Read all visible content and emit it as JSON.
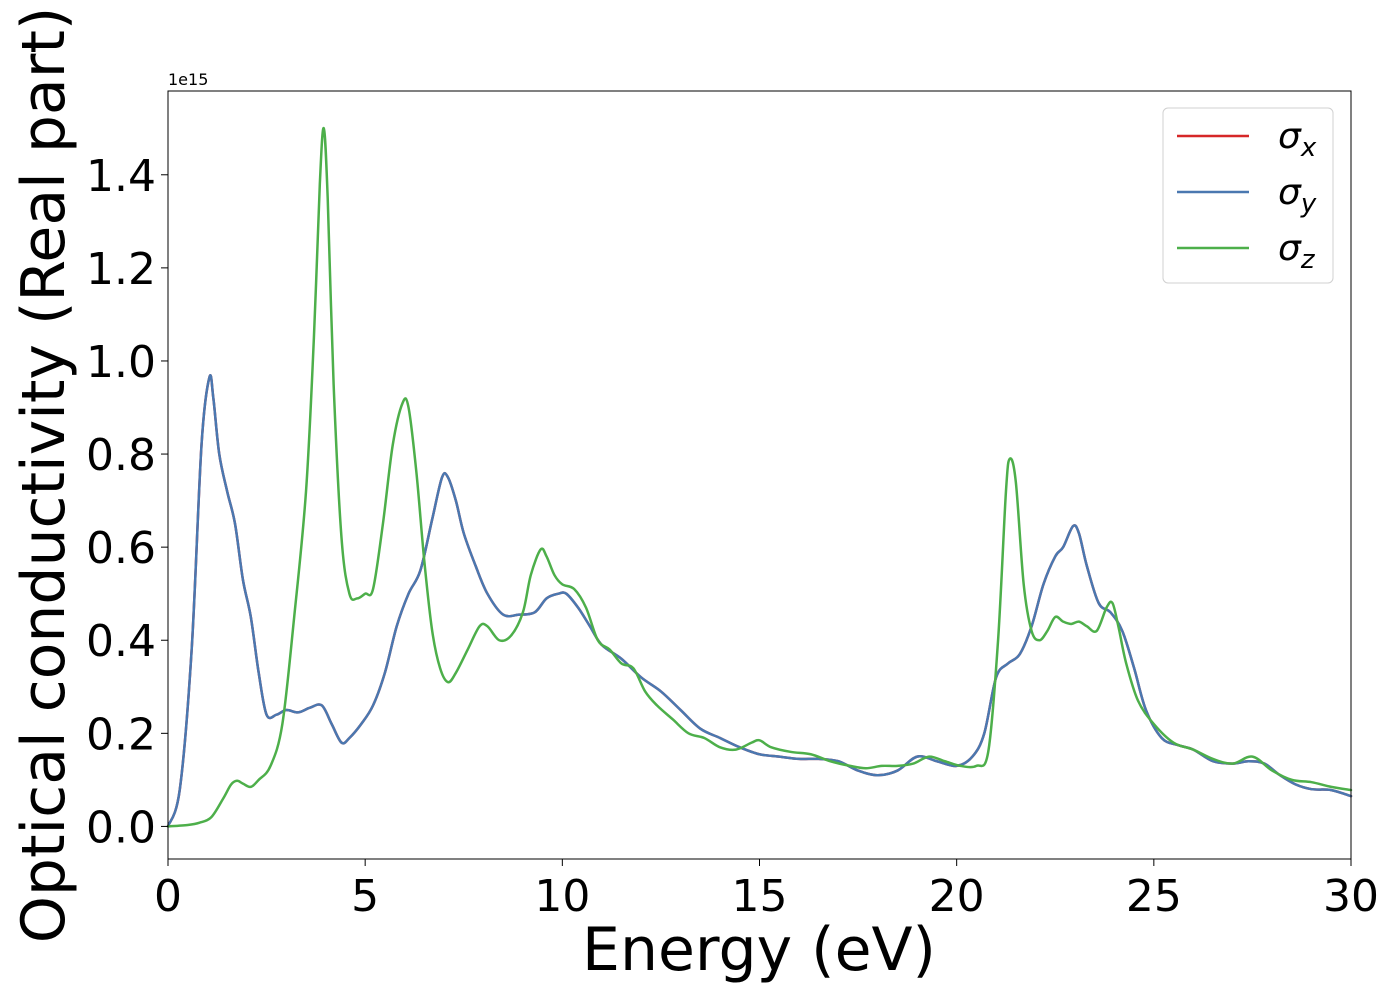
{
  "chart_data": {
    "type": "line",
    "title": "",
    "xlabel": "Energy (eV)",
    "ylabel": "Optical conductivity (Real part)",
    "offset_text": "1e15",
    "xlim": [
      0,
      30
    ],
    "ylim": [
      -0.07,
      1.58
    ],
    "x_ticks": [
      0,
      5,
      10,
      15,
      20,
      25,
      30
    ],
    "x_tick_labels": [
      "0",
      "5",
      "10",
      "15",
      "20",
      "25",
      "30"
    ],
    "y_ticks": [
      0.0,
      0.2,
      0.4,
      0.6,
      0.8,
      1.0,
      1.2,
      1.4
    ],
    "y_tick_labels": [
      "0.0",
      "0.2",
      "0.4",
      "0.6",
      "0.8",
      "1.0",
      "1.2",
      "1.4"
    ],
    "grid": false,
    "legend_position": "top-right",
    "series": [
      {
        "name": "σx",
        "symbol": "σ",
        "subscript": "x",
        "color": "#d62728",
        "x": [
          0,
          0.3,
          0.6,
          0.85,
          1.05,
          1.15,
          1.3,
          1.5,
          1.7,
          1.9,
          2.1,
          2.3,
          2.5,
          2.75,
          3.0,
          3.3,
          3.6,
          3.9,
          4.15,
          4.4,
          4.6,
          4.9,
          5.2,
          5.5,
          5.8,
          6.1,
          6.4,
          6.7,
          6.95,
          7.1,
          7.3,
          7.5,
          7.8,
          8.1,
          8.5,
          8.9,
          9.3,
          9.6,
          9.9,
          10.1,
          10.4,
          10.7,
          11.0,
          11.5,
          12.0,
          12.5,
          13.0,
          13.5,
          14.0,
          14.5,
          15.0,
          15.5,
          16.0,
          16.5,
          17.0,
          17.5,
          18.0,
          18.5,
          19.0,
          19.5,
          20.0,
          20.4,
          20.7,
          21.0,
          21.3,
          21.6,
          21.9,
          22.2,
          22.5,
          22.7,
          22.95,
          23.1,
          23.3,
          23.6,
          23.9,
          24.2,
          24.5,
          24.8,
          25.2,
          25.6,
          26.0,
          26.5,
          27.0,
          27.4,
          27.8,
          28.2,
          28.6,
          29.0,
          29.5,
          30.0
        ],
        "y": [
          0.0,
          0.08,
          0.38,
          0.82,
          0.965,
          0.92,
          0.8,
          0.72,
          0.65,
          0.53,
          0.45,
          0.33,
          0.24,
          0.24,
          0.25,
          0.245,
          0.255,
          0.26,
          0.22,
          0.18,
          0.19,
          0.22,
          0.26,
          0.33,
          0.43,
          0.5,
          0.55,
          0.66,
          0.75,
          0.75,
          0.7,
          0.63,
          0.56,
          0.5,
          0.455,
          0.455,
          0.46,
          0.49,
          0.5,
          0.5,
          0.47,
          0.43,
          0.39,
          0.36,
          0.32,
          0.29,
          0.25,
          0.21,
          0.19,
          0.17,
          0.155,
          0.15,
          0.145,
          0.145,
          0.14,
          0.12,
          0.11,
          0.12,
          0.15,
          0.14,
          0.13,
          0.15,
          0.2,
          0.32,
          0.35,
          0.37,
          0.43,
          0.52,
          0.58,
          0.6,
          0.645,
          0.63,
          0.56,
          0.48,
          0.46,
          0.42,
          0.34,
          0.25,
          0.19,
          0.175,
          0.165,
          0.14,
          0.135,
          0.14,
          0.135,
          0.11,
          0.09,
          0.08,
          0.078,
          0.065
        ]
      },
      {
        "name": "σy",
        "symbol": "σ",
        "subscript": "y",
        "color": "#4a78b0",
        "x": [
          0,
          0.3,
          0.6,
          0.85,
          1.05,
          1.15,
          1.3,
          1.5,
          1.7,
          1.9,
          2.1,
          2.3,
          2.5,
          2.75,
          3.0,
          3.3,
          3.6,
          3.9,
          4.15,
          4.4,
          4.6,
          4.9,
          5.2,
          5.5,
          5.8,
          6.1,
          6.4,
          6.7,
          6.95,
          7.1,
          7.3,
          7.5,
          7.8,
          8.1,
          8.5,
          8.9,
          9.3,
          9.6,
          9.9,
          10.1,
          10.4,
          10.7,
          11.0,
          11.5,
          12.0,
          12.5,
          13.0,
          13.5,
          14.0,
          14.5,
          15.0,
          15.5,
          16.0,
          16.5,
          17.0,
          17.5,
          18.0,
          18.5,
          19.0,
          19.5,
          20.0,
          20.4,
          20.7,
          21.0,
          21.3,
          21.6,
          21.9,
          22.2,
          22.5,
          22.7,
          22.95,
          23.1,
          23.3,
          23.6,
          23.9,
          24.2,
          24.5,
          24.8,
          25.2,
          25.6,
          26.0,
          26.5,
          27.0,
          27.4,
          27.8,
          28.2,
          28.6,
          29.0,
          29.5,
          30.0
        ],
        "y": [
          0.0,
          0.08,
          0.38,
          0.82,
          0.965,
          0.92,
          0.8,
          0.72,
          0.65,
          0.53,
          0.45,
          0.33,
          0.24,
          0.24,
          0.25,
          0.245,
          0.255,
          0.26,
          0.22,
          0.18,
          0.19,
          0.22,
          0.26,
          0.33,
          0.43,
          0.5,
          0.55,
          0.66,
          0.75,
          0.75,
          0.7,
          0.63,
          0.56,
          0.5,
          0.455,
          0.455,
          0.46,
          0.49,
          0.5,
          0.5,
          0.47,
          0.43,
          0.39,
          0.36,
          0.32,
          0.29,
          0.25,
          0.21,
          0.19,
          0.17,
          0.155,
          0.15,
          0.145,
          0.145,
          0.14,
          0.12,
          0.11,
          0.12,
          0.15,
          0.14,
          0.13,
          0.15,
          0.2,
          0.32,
          0.35,
          0.37,
          0.43,
          0.52,
          0.58,
          0.6,
          0.645,
          0.63,
          0.56,
          0.48,
          0.46,
          0.42,
          0.34,
          0.25,
          0.19,
          0.175,
          0.165,
          0.14,
          0.135,
          0.14,
          0.135,
          0.11,
          0.09,
          0.08,
          0.078,
          0.065
        ]
      },
      {
        "name": "σz",
        "symbol": "σ",
        "subscript": "z",
        "color": "#4daf4a",
        "x": [
          0,
          0.5,
          0.8,
          1.1,
          1.4,
          1.6,
          1.75,
          1.9,
          2.1,
          2.3,
          2.6,
          2.9,
          3.2,
          3.5,
          3.7,
          3.85,
          3.95,
          4.05,
          4.2,
          4.4,
          4.6,
          4.8,
          5.0,
          5.2,
          5.45,
          5.7,
          5.95,
          6.1,
          6.3,
          6.5,
          6.7,
          6.9,
          7.1,
          7.3,
          7.6,
          7.9,
          8.1,
          8.4,
          8.7,
          9.0,
          9.2,
          9.45,
          9.6,
          9.8,
          10.0,
          10.3,
          10.6,
          10.9,
          11.2,
          11.5,
          11.8,
          12.1,
          12.4,
          12.8,
          13.2,
          13.6,
          14.0,
          14.4,
          14.8,
          15.0,
          15.3,
          15.8,
          16.3,
          16.8,
          17.3,
          17.7,
          18.1,
          18.5,
          18.9,
          19.3,
          19.7,
          20.1,
          20.5,
          20.8,
          21.05,
          21.25,
          21.35,
          21.5,
          21.7,
          21.9,
          22.1,
          22.3,
          22.5,
          22.7,
          22.9,
          23.1,
          23.3,
          23.55,
          23.8,
          23.95,
          24.1,
          24.3,
          24.6,
          25.0,
          25.5,
          26.0,
          26.5,
          27.0,
          27.5,
          28.0,
          28.5,
          29.0,
          29.5,
          30.0
        ],
        "y": [
          0.0,
          0.003,
          0.008,
          0.02,
          0.06,
          0.09,
          0.098,
          0.092,
          0.085,
          0.1,
          0.13,
          0.22,
          0.45,
          0.72,
          1.05,
          1.38,
          1.5,
          1.35,
          0.95,
          0.62,
          0.5,
          0.49,
          0.5,
          0.51,
          0.65,
          0.82,
          0.91,
          0.9,
          0.76,
          0.57,
          0.42,
          0.34,
          0.31,
          0.33,
          0.38,
          0.43,
          0.43,
          0.4,
          0.41,
          0.46,
          0.54,
          0.595,
          0.58,
          0.54,
          0.52,
          0.51,
          0.47,
          0.4,
          0.38,
          0.35,
          0.34,
          0.29,
          0.26,
          0.23,
          0.2,
          0.19,
          0.17,
          0.165,
          0.18,
          0.185,
          0.17,
          0.16,
          0.155,
          0.14,
          0.13,
          0.125,
          0.13,
          0.13,
          0.135,
          0.15,
          0.14,
          0.13,
          0.13,
          0.16,
          0.4,
          0.72,
          0.79,
          0.74,
          0.52,
          0.42,
          0.4,
          0.42,
          0.45,
          0.44,
          0.435,
          0.44,
          0.43,
          0.42,
          0.47,
          0.48,
          0.43,
          0.35,
          0.27,
          0.22,
          0.18,
          0.165,
          0.145,
          0.135,
          0.15,
          0.12,
          0.1,
          0.095,
          0.085,
          0.078
        ]
      }
    ]
  }
}
